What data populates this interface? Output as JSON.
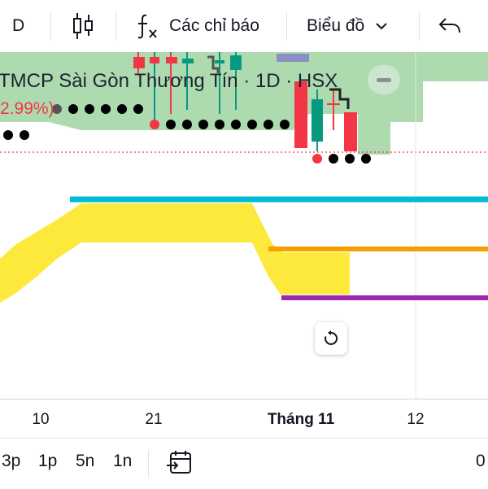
{
  "toolbar": {
    "interval_label": "D",
    "indicators_label": "Các chỉ báo",
    "chart_type_label": "Biểu đồ"
  },
  "legend": {
    "title": "TMCP Sài Gòn Thương Tín · 1D · HSX",
    "change_pct": "2.99%)"
  },
  "colors": {
    "cloud_green": "#a5d6a7",
    "cloud_yellow": "#fde93b",
    "up": "#089981",
    "down": "#f23645",
    "dot": "#000000",
    "cyan_line": "#00bcd4",
    "orange_line": "#f5a000",
    "purple_line": "#9c27b0",
    "price_line": "#f23645"
  },
  "xaxis": {
    "labels": [
      "10",
      "21",
      "Tháng 11",
      "12"
    ]
  },
  "timeframes": [
    "3p",
    "1p",
    "5n",
    "1n"
  ],
  "bottom_right_value": "0",
  "icons": {
    "candles": "candles-icon",
    "indicators": "fx-icon",
    "chevron": "chevron-down-icon",
    "undo": "undo-icon",
    "reset": "reset-icon",
    "date_range": "calendar-goto-icon"
  }
}
